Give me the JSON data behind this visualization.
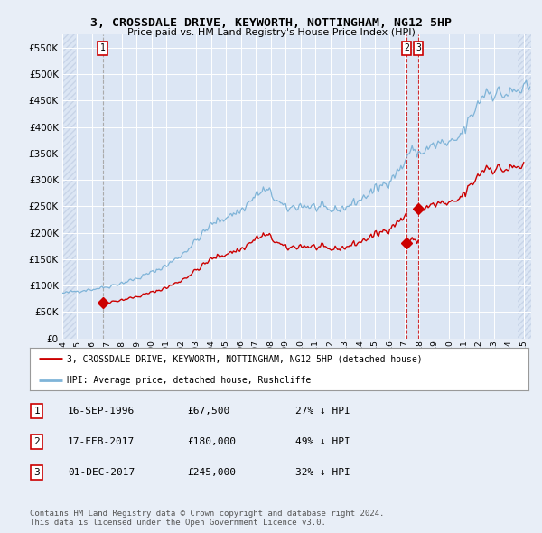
{
  "title": "3, CROSSDALE DRIVE, KEYWORTH, NOTTINGHAM, NG12 5HP",
  "subtitle": "Price paid vs. HM Land Registry's House Price Index (HPI)",
  "ylim": [
    0,
    575000
  ],
  "yticks": [
    0,
    50000,
    100000,
    150000,
    200000,
    250000,
    300000,
    350000,
    400000,
    450000,
    500000,
    550000
  ],
  "ytick_labels": [
    "£0",
    "£50K",
    "£100K",
    "£150K",
    "£200K",
    "£250K",
    "£300K",
    "£350K",
    "£400K",
    "£450K",
    "£500K",
    "£550K"
  ],
  "background_color": "#e8eef7",
  "plot_bg_color": "#dce6f4",
  "grid_color": "#c8d4e8",
  "hatch_color": "#c8d4e8",
  "hpi_color": "#7fb4d8",
  "price_color": "#cc0000",
  "vline1_color": "#aaaaaa",
  "vline23_color": "#cc0000",
  "sale1_date": 1996.71,
  "sale1_price": 67500,
  "sale2_date": 2017.13,
  "sale2_price": 180000,
  "sale3_date": 2017.92,
  "sale3_price": 245000,
  "table_rows": [
    [
      "1",
      "16-SEP-1996",
      "£67,500",
      "27% ↓ HPI"
    ],
    [
      "2",
      "17-FEB-2017",
      "£180,000",
      "49% ↓ HPI"
    ],
    [
      "3",
      "01-DEC-2017",
      "£245,000",
      "32% ↓ HPI"
    ]
  ],
  "legend_line1": "3, CROSSDALE DRIVE, KEYWORTH, NOTTINGHAM, NG12 5HP (detached house)",
  "legend_line2": "HPI: Average price, detached house, Rushcliffe",
  "footnote": "Contains HM Land Registry data © Crown copyright and database right 2024.\nThis data is licensed under the Open Government Licence v3.0.",
  "xmin": 1994.0,
  "xmax": 2025.5
}
